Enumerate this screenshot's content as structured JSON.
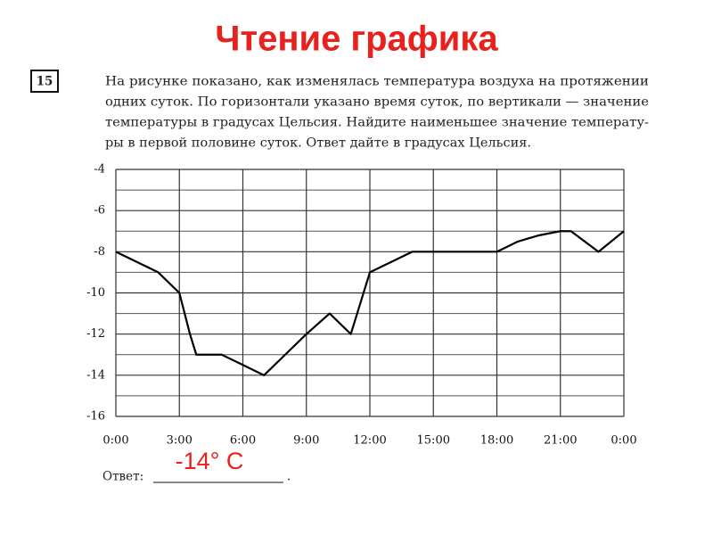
{
  "header": {
    "title": "Чтение графика"
  },
  "problem": {
    "number": "15",
    "text_lines": [
      "На рисунке показано, как изменялась температура воздуха на протяжении",
      "одних суток. По горизонтали указано время суток, по вертикали — значение",
      "температуры в градусах Цельсия. Найдите наименьшее значение температу-",
      "ры в первой половине суток. Ответ дайте в градусах Цельсия."
    ]
  },
  "chart_data": {
    "type": "line",
    "x": [
      0,
      1,
      2,
      3,
      3.5,
      3.8,
      5,
      6,
      7,
      8,
      9,
      10.1,
      11.1,
      12,
      13,
      14,
      15,
      16,
      17,
      18,
      19,
      20,
      21,
      21.5,
      22.8,
      24
    ],
    "series": [
      {
        "color": "#000000",
        "values": [
          -8,
          -8.5,
          -9,
          -10,
          -12,
          -13,
          -13,
          -13.5,
          -14,
          -13,
          -12,
          -11,
          -12,
          -9,
          -8.5,
          -8,
          -8,
          -8,
          -8,
          -8,
          -7.5,
          -7.2,
          -7,
          -7,
          -8,
          -7
        ]
      }
    ],
    "xlim": [
      0,
      24
    ],
    "xticks": [
      {
        "value": 0,
        "label": "0:00"
      },
      {
        "value": 3,
        "label": "3:00"
      },
      {
        "value": 6,
        "label": "6:00"
      },
      {
        "value": 9,
        "label": "9:00"
      },
      {
        "value": 12,
        "label": "12:00"
      },
      {
        "value": 15,
        "label": "15:00"
      },
      {
        "value": 18,
        "label": "18:00"
      },
      {
        "value": 21,
        "label": "21:00"
      },
      {
        "value": 24,
        "label": "0:00"
      }
    ],
    "ylim": [
      -16,
      -4
    ],
    "yticks": [
      -4,
      -6,
      -8,
      -10,
      -12,
      -14,
      -16
    ],
    "grid": true
  },
  "answer": {
    "label": "Ответ:",
    "value": "-14° C",
    "suffix": "."
  }
}
